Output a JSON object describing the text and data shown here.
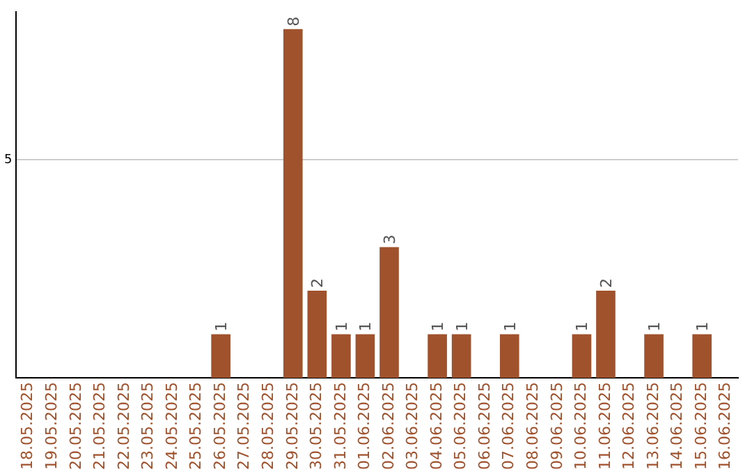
{
  "chart_data": {
    "type": "bar",
    "categories": [
      "18.05.2025",
      "19.05.2025",
      "20.05.2025",
      "21.05.2025",
      "22.05.2025",
      "23.05.2025",
      "24.05.2025",
      "25.05.2025",
      "26.05.2025",
      "27.05.2025",
      "28.05.2025",
      "29.05.2025",
      "30.05.2025",
      "31.05.2025",
      "01.06.2025",
      "02.06.2025",
      "03.06.2025",
      "04.06.2025",
      "05.06.2025",
      "06.06.2025",
      "07.06.2025",
      "08.06.2025",
      "09.06.2025",
      "10.06.2025",
      "11.06.2025",
      "12.06.2025",
      "13.06.2025",
      "14.06.2025",
      "15.06.2025",
      "16.06.2025"
    ],
    "values": [
      0,
      0,
      0,
      0,
      0,
      0,
      0,
      0,
      1,
      0,
      0,
      8,
      2,
      1,
      1,
      3,
      0,
      1,
      1,
      0,
      1,
      0,
      0,
      1,
      2,
      0,
      1,
      0,
      1,
      0
    ],
    "value_labels": [
      null,
      null,
      null,
      null,
      null,
      null,
      null,
      null,
      "1",
      null,
      null,
      "8",
      "2",
      "1",
      "1",
      "3",
      null,
      "1",
      "1",
      null,
      "1",
      null,
      null,
      "1",
      "2",
      null,
      "1",
      null,
      "1",
      null
    ],
    "color": "#a0522d",
    "ylim": [
      0,
      8.4
    ],
    "yticks": [
      5
    ],
    "grid": "y"
  }
}
